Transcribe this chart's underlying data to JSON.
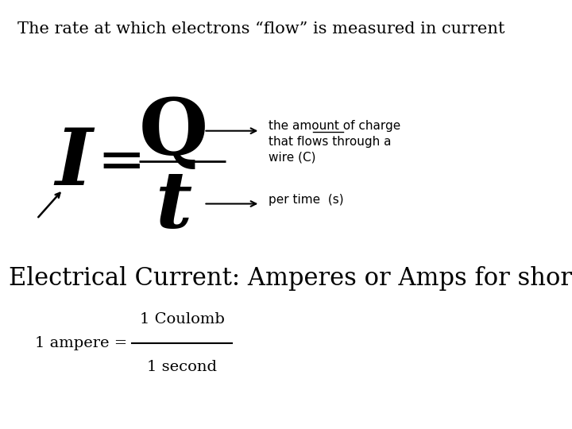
{
  "background_color": "#ffffff",
  "title_text": "The rate at which electrons “flow” is measured in current",
  "title_fontsize": 15,
  "formula_I": "I",
  "formula_eq": "=",
  "formula_Q": "Q",
  "formula_t": "t",
  "formula_fontsize_large": 72,
  "formula_fontsize_eq": 52,
  "annotation_Q_text": "the amount of charge\nthat flows through a\nwire (C)",
  "annotation_t_text": "per time  (s)",
  "annotation_fontsize": 11,
  "electrical_text": "Electrical Current: Amperes or Amps for short",
  "electrical_fontsize": 22,
  "ampere_text_left": "1 ampere = ",
  "ampere_num": "1 Coulomb",
  "ampere_den": "1 second",
  "ampere_fontsize": 14,
  "text_color": "#000000"
}
